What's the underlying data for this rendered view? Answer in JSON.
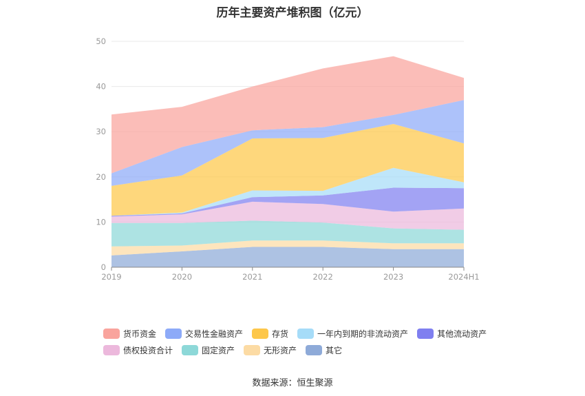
{
  "chart_data": {
    "type": "area",
    "stacked": true,
    "title": "历年主要资产堆积图（亿元）",
    "source": "数据来源：恒生聚源",
    "categories": [
      "2019",
      "2020",
      "2021",
      "2022",
      "2023",
      "2024H1"
    ],
    "y_ticks": [
      "0",
      "10",
      "20",
      "30",
      "40",
      "50"
    ],
    "ylim": [
      0,
      50
    ],
    "grid": true,
    "legend_position": "bottom",
    "series": [
      {
        "name": "其它",
        "color": "#8eaad8",
        "values": [
          2.6,
          3.5,
          4.5,
          4.5,
          4.0,
          4.0
        ]
      },
      {
        "name": "无形资产",
        "color": "#fcdba4",
        "values": [
          2.0,
          1.3,
          1.4,
          1.4,
          1.3,
          1.3
        ]
      },
      {
        "name": "固定资产",
        "color": "#8dd8d8",
        "values": [
          5.2,
          5.0,
          4.4,
          4.0,
          3.3,
          3.0
        ]
      },
      {
        "name": "债权投资合计",
        "color": "#ecb8dc",
        "values": [
          1.4,
          1.9,
          4.2,
          4.1,
          3.7,
          4.7
        ]
      },
      {
        "name": "其他流动资产",
        "color": "#7f7ff0",
        "values": [
          0.2,
          0.2,
          1.0,
          1.9,
          5.3,
          4.5
        ]
      },
      {
        "name": "一年内到期的非流动资产",
        "color": "#a6dcf8",
        "values": [
          0.0,
          0.2,
          1.5,
          1.0,
          4.4,
          1.3
        ]
      },
      {
        "name": "存货",
        "color": "#fdc74a",
        "values": [
          6.6,
          8.2,
          11.5,
          11.7,
          9.7,
          8.6
        ]
      },
      {
        "name": "交易性金融资产",
        "color": "#8daaf8",
        "values": [
          2.8,
          6.3,
          1.8,
          2.4,
          2.0,
          9.6
        ]
      },
      {
        "name": "货币资金",
        "color": "#f9a49d",
        "values": [
          13.0,
          8.9,
          9.7,
          13.0,
          13.0,
          4.9
        ]
      }
    ],
    "legend_rows": [
      [
        "货币资金",
        "交易性金融资产",
        "存货",
        "一年内到期的非流动资产",
        "其他流动资产"
      ],
      [
        "债权投资合计",
        "固定资产",
        "无形资产",
        "其它"
      ]
    ]
  }
}
